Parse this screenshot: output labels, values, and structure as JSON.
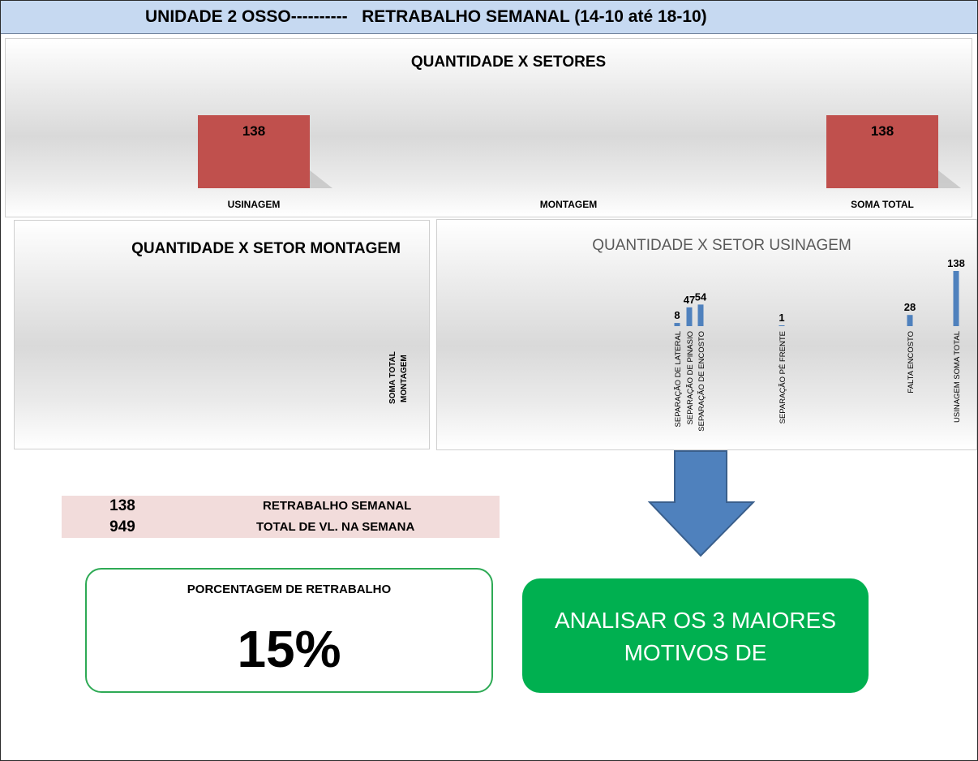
{
  "header": {
    "title": "UNIDADE 2 OSSO----------   RETRABALHO SEMANAL (14-10 até 18-10)"
  },
  "colors": {
    "bar_red": "#c0504d",
    "bar_blue": "#4f81bd",
    "green": "#00b050",
    "pink": "#f2dcdb",
    "header_bg": "#c6d9f1"
  },
  "chart_data": [
    {
      "type": "bar",
      "title": "QUANTIDADE X SETORES",
      "categories": [
        "USINAGEM",
        "MONTAGEM",
        "SOMA TOTAL"
      ],
      "values": [
        138,
        0,
        138
      ],
      "data_labels": [
        "138",
        "",
        "138"
      ],
      "ylim": [
        0,
        138
      ],
      "grid": false,
      "legend": "none"
    },
    {
      "type": "bar",
      "title": "QUANTIDADE X SETOR MONTAGEM",
      "categories": [
        "SOMA TOTAL MONTAGEM"
      ],
      "values": [
        0
      ],
      "grid": false,
      "legend": "none"
    },
    {
      "type": "bar",
      "title": "QUANTIDADE X SETOR USINAGEM",
      "categories": [
        "SEPARAÇÃO DE LATERAL",
        "SEPARAÇÃO DE PINASIO",
        "SEPARAÇÃO DE ENCOSTO",
        "SEPARAÇÃO PÉ FRENTE",
        "FALTA ENCOSTO",
        "USINAGEM SOMA TOTAL"
      ],
      "values": [
        8,
        47,
        54,
        1,
        28,
        138
      ],
      "ylim": [
        0,
        138
      ],
      "grid": false,
      "legend": "none"
    }
  ],
  "summary": {
    "rows": [
      {
        "value": "138",
        "label": "RETRABALHO SEMANAL"
      },
      {
        "value": "949",
        "label": "TOTAL DE VL. NA SEMANA"
      }
    ]
  },
  "percentage": {
    "label": "PORCENTAGEM DE RETRABALHO",
    "value": "15%"
  },
  "action": {
    "line1": "ANALISAR OS 3 MAIORES",
    "line2": "MOTIVOS DE"
  }
}
